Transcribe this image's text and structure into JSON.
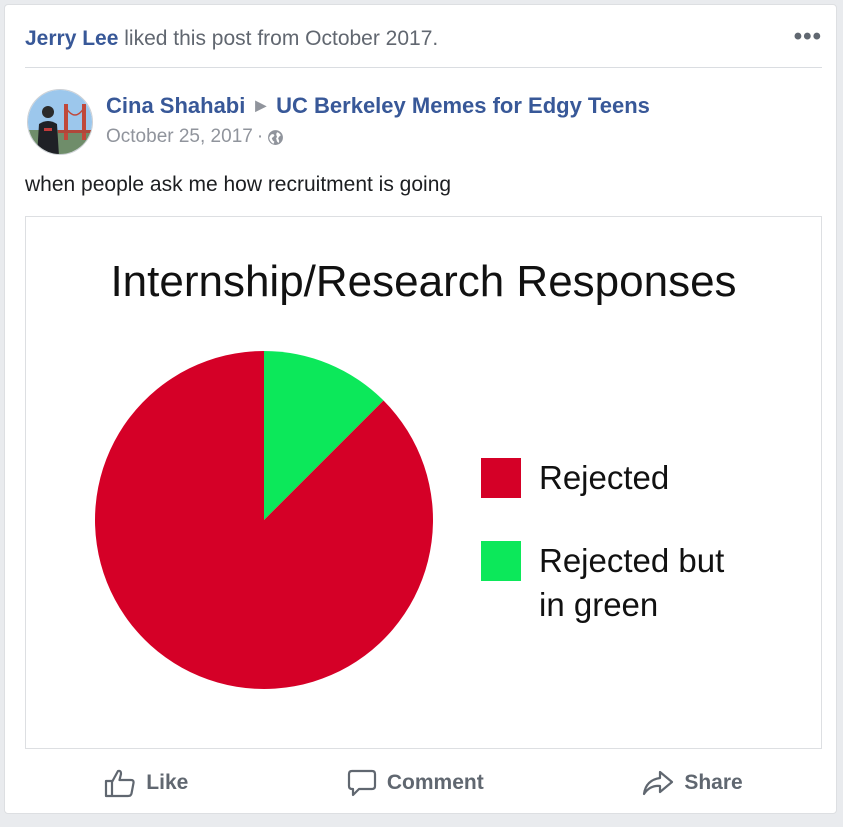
{
  "story": {
    "actor": "Jerry Lee",
    "text": "liked this post from October 2017.",
    "more_label": "•••"
  },
  "post": {
    "author": "Cina Shahabi",
    "group": "UC Berkeley Memes for Edgy Teens",
    "date": "October 25, 2017",
    "separator": "·",
    "privacy_icon": "globe-icon",
    "text": "when people ask me how recruitment is going"
  },
  "chart_data": {
    "type": "pie",
    "title": "Internship/Research Responses",
    "categories": [
      "Rejected",
      "Rejected but in green"
    ],
    "values": [
      87.5,
      12.5
    ],
    "colors": [
      "#d50027",
      "#0ce85a"
    ],
    "legend": "right"
  },
  "actions": {
    "like": "Like",
    "comment": "Comment",
    "share": "Share"
  }
}
